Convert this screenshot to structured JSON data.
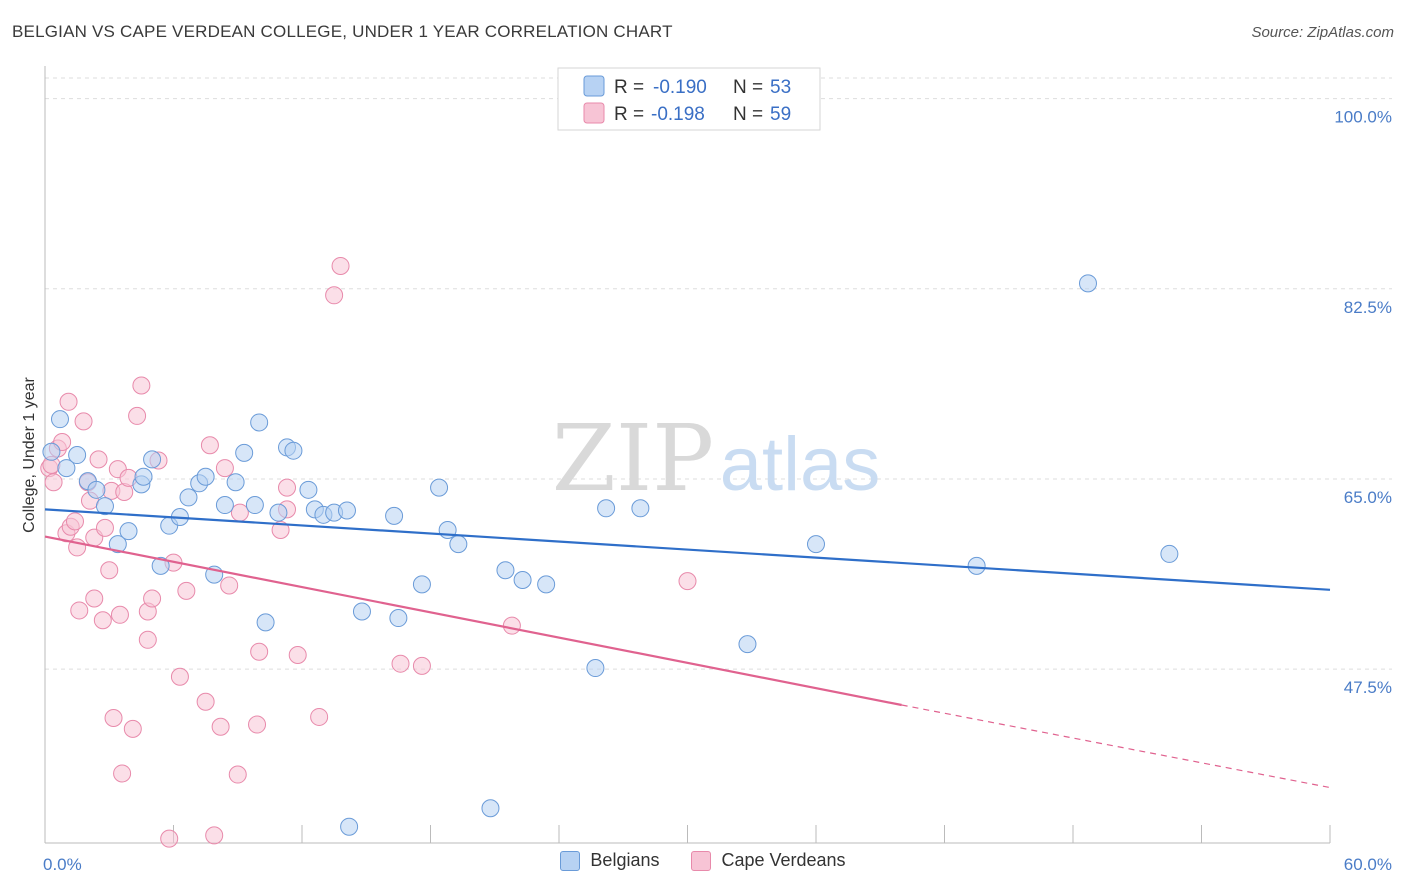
{
  "header": {
    "title": "BELGIAN VS CAPE VERDEAN COLLEGE, UNDER 1 YEAR CORRELATION CHART",
    "source": "Source: ZipAtlas.com"
  },
  "watermark": {
    "zip": "ZIP",
    "atlas": "atlas"
  },
  "colors": {
    "blue_fill": "#b7d2f3",
    "blue_stroke": "#6a9bd8",
    "blue_line": "#2f6fc9",
    "pink_fill": "#f7c4d5",
    "pink_stroke": "#e88aab",
    "pink_line": "#e0628f",
    "axis_text": "#4a7cc7",
    "grid": "#dddddd"
  },
  "legend": {
    "rows": [
      {
        "r_label": "R = ",
        "r_value": "-0.190",
        "n_label": "N = ",
        "n_value": "53",
        "series": "blue"
      },
      {
        "r_label": "R = ",
        "r_value": "-0.198",
        "n_label": "N = ",
        "n_value": "59",
        "series": "pink"
      }
    ]
  },
  "bottom_legend": {
    "items": [
      {
        "label": "Belgians",
        "series": "blue"
      },
      {
        "label": "Cape Verdeans",
        "series": "pink"
      }
    ]
  },
  "chart_data": {
    "type": "scatter",
    "title": "BELGIAN VS CAPE VERDEAN COLLEGE, UNDER 1 YEAR CORRELATION CHART",
    "xlabel": "",
    "ylabel": "College, Under 1 year",
    "xlim": [
      0,
      60
    ],
    "ylim": [
      31.5,
      103
    ],
    "x_tick_labels": [
      {
        "value": 0,
        "label": "0.0%"
      },
      {
        "value": 60,
        "label": "60.0%"
      }
    ],
    "x_tick_marks": [
      6,
      12,
      18,
      24,
      30,
      36,
      42,
      48,
      54,
      60
    ],
    "y_ticks": [
      {
        "value": 100,
        "label": "100.0%"
      },
      {
        "value": 82.5,
        "label": "82.5%"
      },
      {
        "value": 65,
        "label": "65.0%"
      },
      {
        "value": 47.5,
        "label": "47.5%"
      }
    ],
    "grid": true,
    "legend_position": "top-center",
    "series": [
      {
        "name": "Belgians",
        "color": "blue",
        "trend": {
          "x": [
            0,
            60
          ],
          "y": [
            62.2,
            54.8
          ],
          "dashed_from": null
        },
        "points": [
          {
            "x": 0.3,
            "y": 67.5
          },
          {
            "x": 0.7,
            "y": 70.5
          },
          {
            "x": 1.0,
            "y": 66.0
          },
          {
            "x": 1.5,
            "y": 67.2
          },
          {
            "x": 2.0,
            "y": 64.8
          },
          {
            "x": 2.4,
            "y": 64.0
          },
          {
            "x": 2.8,
            "y": 62.5
          },
          {
            "x": 3.4,
            "y": 59.0
          },
          {
            "x": 3.9,
            "y": 60.2
          },
          {
            "x": 4.5,
            "y": 64.5
          },
          {
            "x": 4.6,
            "y": 65.2
          },
          {
            "x": 5.0,
            "y": 66.8
          },
          {
            "x": 5.4,
            "y": 57.0
          },
          {
            "x": 5.8,
            "y": 60.7
          },
          {
            "x": 6.3,
            "y": 61.5
          },
          {
            "x": 6.7,
            "y": 63.3
          },
          {
            "x": 7.2,
            "y": 64.6
          },
          {
            "x": 7.5,
            "y": 65.2
          },
          {
            "x": 7.9,
            "y": 56.2
          },
          {
            "x": 8.4,
            "y": 62.6
          },
          {
            "x": 8.9,
            "y": 64.7
          },
          {
            "x": 9.3,
            "y": 67.4
          },
          {
            "x": 9.8,
            "y": 62.6
          },
          {
            "x": 10.0,
            "y": 70.2
          },
          {
            "x": 10.3,
            "y": 51.8
          },
          {
            "x": 10.9,
            "y": 61.9
          },
          {
            "x": 11.3,
            "y": 67.9
          },
          {
            "x": 11.6,
            "y": 67.6
          },
          {
            "x": 12.3,
            "y": 64.0
          },
          {
            "x": 12.6,
            "y": 62.2
          },
          {
            "x": 13.0,
            "y": 61.7
          },
          {
            "x": 13.5,
            "y": 61.9
          },
          {
            "x": 14.1,
            "y": 62.1
          },
          {
            "x": 14.2,
            "y": 33.0
          },
          {
            "x": 14.8,
            "y": 52.8
          },
          {
            "x": 16.5,
            "y": 52.2
          },
          {
            "x": 16.3,
            "y": 61.6
          },
          {
            "x": 17.6,
            "y": 55.3
          },
          {
            "x": 18.4,
            "y": 64.2
          },
          {
            "x": 18.8,
            "y": 60.3
          },
          {
            "x": 19.3,
            "y": 59.0
          },
          {
            "x": 20.8,
            "y": 34.7
          },
          {
            "x": 21.5,
            "y": 56.6
          },
          {
            "x": 22.3,
            "y": 55.7
          },
          {
            "x": 23.4,
            "y": 55.3
          },
          {
            "x": 25.7,
            "y": 47.6
          },
          {
            "x": 26.2,
            "y": 62.3
          },
          {
            "x": 27.8,
            "y": 62.3
          },
          {
            "x": 32.8,
            "y": 49.8
          },
          {
            "x": 36.0,
            "y": 59.0
          },
          {
            "x": 43.5,
            "y": 57.0
          },
          {
            "x": 48.7,
            "y": 83.0
          },
          {
            "x": 52.5,
            "y": 58.1
          }
        ]
      },
      {
        "name": "Cape Verdeans",
        "color": "pink",
        "trend": {
          "x": [
            0,
            40
          ],
          "y": [
            59.7,
            44.2
          ],
          "dashed_from": 40,
          "dashed_to": [
            60,
            36.6
          ]
        },
        "points": [
          {
            "x": 0.2,
            "y": 66.0
          },
          {
            "x": 0.3,
            "y": 66.3
          },
          {
            "x": 0.4,
            "y": 64.7
          },
          {
            "x": 0.6,
            "y": 67.8
          },
          {
            "x": 0.8,
            "y": 68.4
          },
          {
            "x": 1.0,
            "y": 60.0
          },
          {
            "x": 1.1,
            "y": 72.1
          },
          {
            "x": 1.2,
            "y": 60.6
          },
          {
            "x": 1.4,
            "y": 61.1
          },
          {
            "x": 1.5,
            "y": 58.7
          },
          {
            "x": 1.6,
            "y": 52.9
          },
          {
            "x": 1.8,
            "y": 70.3
          },
          {
            "x": 2.0,
            "y": 64.7
          },
          {
            "x": 2.1,
            "y": 63.0
          },
          {
            "x": 2.3,
            "y": 54.0
          },
          {
            "x": 2.3,
            "y": 59.6
          },
          {
            "x": 2.5,
            "y": 66.8
          },
          {
            "x": 2.7,
            "y": 52.0
          },
          {
            "x": 2.8,
            "y": 60.5
          },
          {
            "x": 3.0,
            "y": 56.6
          },
          {
            "x": 3.1,
            "y": 63.9
          },
          {
            "x": 3.2,
            "y": 43.0
          },
          {
            "x": 3.4,
            "y": 65.9
          },
          {
            "x": 3.5,
            "y": 52.5
          },
          {
            "x": 3.6,
            "y": 37.9
          },
          {
            "x": 3.7,
            "y": 63.8
          },
          {
            "x": 3.9,
            "y": 65.1
          },
          {
            "x": 4.1,
            "y": 42.0
          },
          {
            "x": 4.3,
            "y": 70.8
          },
          {
            "x": 4.5,
            "y": 73.6
          },
          {
            "x": 4.8,
            "y": 52.8
          },
          {
            "x": 4.8,
            "y": 50.2
          },
          {
            "x": 5.0,
            "y": 54.0
          },
          {
            "x": 5.3,
            "y": 66.7
          },
          {
            "x": 5.8,
            "y": 31.9
          },
          {
            "x": 6.0,
            "y": 57.3
          },
          {
            "x": 6.3,
            "y": 46.8
          },
          {
            "x": 6.6,
            "y": 54.7
          },
          {
            "x": 7.5,
            "y": 44.5
          },
          {
            "x": 7.7,
            "y": 68.1
          },
          {
            "x": 7.9,
            "y": 32.2
          },
          {
            "x": 8.2,
            "y": 42.2
          },
          {
            "x": 8.4,
            "y": 66.0
          },
          {
            "x": 8.6,
            "y": 55.2
          },
          {
            "x": 9.0,
            "y": 37.8
          },
          {
            "x": 9.1,
            "y": 61.9
          },
          {
            "x": 9.9,
            "y": 42.4
          },
          {
            "x": 10.0,
            "y": 49.1
          },
          {
            "x": 11.0,
            "y": 60.3
          },
          {
            "x": 11.3,
            "y": 62.2
          },
          {
            "x": 11.3,
            "y": 64.2
          },
          {
            "x": 11.8,
            "y": 48.8
          },
          {
            "x": 12.8,
            "y": 43.1
          },
          {
            "x": 13.5,
            "y": 81.9
          },
          {
            "x": 13.8,
            "y": 84.6
          },
          {
            "x": 16.6,
            "y": 48.0
          },
          {
            "x": 17.6,
            "y": 47.8
          },
          {
            "x": 21.8,
            "y": 51.5
          },
          {
            "x": 30.0,
            "y": 55.6
          }
        ]
      }
    ]
  }
}
